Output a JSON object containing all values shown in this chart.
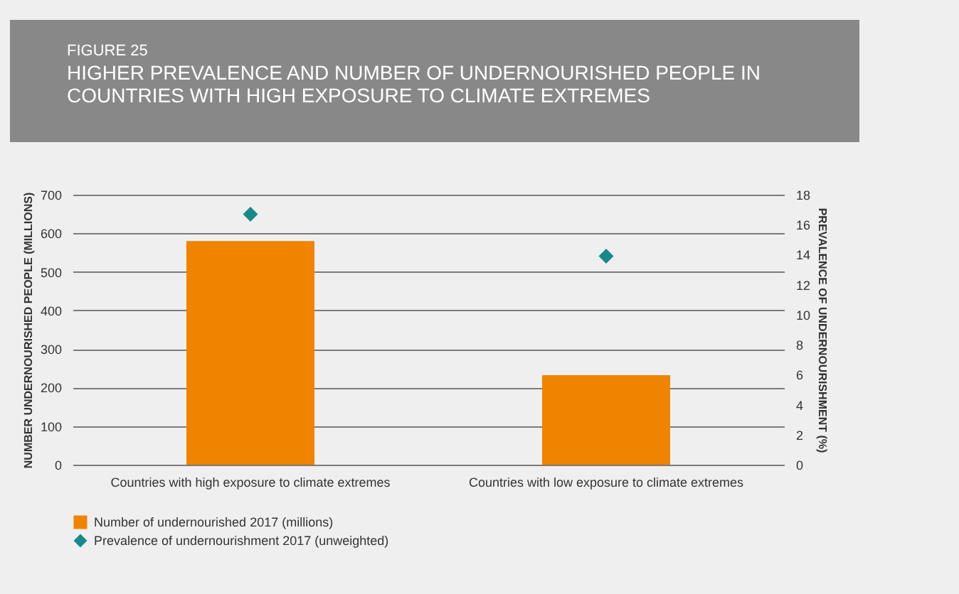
{
  "chart_data": {
    "type": "bar",
    "subtitle": "FIGURE 25",
    "title": "HIGHER PREVALENCE AND NUMBER OF UNDERNOURISHED PEOPLE IN COUNTRIES WITH HIGH EXPOSURE TO CLIMATE EXTREMES",
    "ylabel": "NUMBER UNDERNOURISHED PEOPLE (MILLIONS)",
    "y2label": "PREVALENCE OF UNDERNOURISHMENT (%)",
    "categories": [
      "Countries with high exposure to climate extremes",
      "Countries with low exposure to climate extremes"
    ],
    "series": [
      {
        "name": "Number of undernourished 2017 (millions)",
        "color": "#f08300",
        "values": [
          580,
          232
        ]
      },
      {
        "name": "Prevalence of undernourishment 2017 (unweighted)",
        "type": "scatter",
        "axis": "y2",
        "color": "#168a8a",
        "values": [
          16.7,
          13.9
        ]
      }
    ],
    "ylim": [
      0,
      700
    ],
    "yticks": [
      0,
      100,
      200,
      300,
      400,
      500,
      600,
      700
    ],
    "y2lim": [
      0,
      18
    ],
    "y2ticks": [
      0,
      2,
      4,
      6,
      8,
      10,
      12,
      14,
      16,
      18
    ],
    "grid": "y",
    "legend": "bottom left",
    "marker": "diamond"
  }
}
